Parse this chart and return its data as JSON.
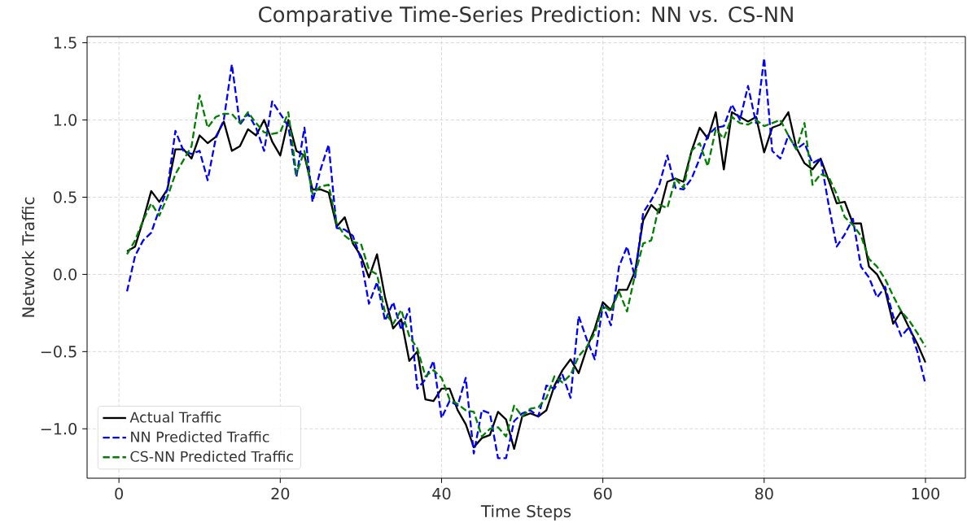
{
  "chart_data": {
    "type": "line",
    "title": "Comparative Time-Series Prediction: NN vs. CS-NN",
    "xlabel": "Time Steps",
    "ylabel": "Network Traffic",
    "x": [
      1,
      2,
      3,
      4,
      5,
      6,
      7,
      8,
      9,
      10,
      11,
      12,
      13,
      14,
      15,
      16,
      17,
      18,
      19,
      20,
      21,
      22,
      23,
      24,
      25,
      26,
      27,
      28,
      29,
      30,
      31,
      32,
      33,
      34,
      35,
      36,
      37,
      38,
      39,
      40,
      41,
      42,
      43,
      44,
      45,
      46,
      47,
      48,
      49,
      50,
      51,
      52,
      53,
      54,
      55,
      56,
      57,
      58,
      59,
      60,
      61,
      62,
      63,
      64,
      65,
      66,
      67,
      68,
      69,
      70,
      71,
      72,
      73,
      74,
      75,
      76,
      77,
      78,
      79,
      80,
      81,
      82,
      83,
      84,
      85,
      86,
      87,
      88,
      89,
      90,
      91,
      92,
      93,
      94,
      95,
      96,
      97,
      98,
      99,
      100
    ],
    "series": [
      {
        "name": "Actual Traffic",
        "color": "#000000",
        "line_style": "solid",
        "values": [
          0.15,
          0.18,
          0.35,
          0.54,
          0.47,
          0.55,
          0.81,
          0.81,
          0.75,
          0.9,
          0.85,
          0.89,
          0.99,
          0.8,
          0.83,
          0.94,
          0.9,
          1.0,
          0.86,
          0.77,
          1.0,
          0.8,
          0.77,
          0.55,
          0.55,
          0.53,
          0.31,
          0.37,
          0.2,
          0.12,
          -0.02,
          0.13,
          -0.15,
          -0.35,
          -0.29,
          -0.56,
          -0.5,
          -0.81,
          -0.82,
          -0.74,
          -0.74,
          -0.88,
          -0.97,
          -1.12,
          -1.06,
          -1.04,
          -0.89,
          -0.94,
          -1.13,
          -0.92,
          -0.9,
          -0.92,
          -0.88,
          -0.72,
          -0.62,
          -0.55,
          -0.64,
          -0.48,
          -0.35,
          -0.18,
          -0.23,
          -0.1,
          -0.1,
          0.02,
          0.35,
          0.45,
          0.4,
          0.6,
          0.62,
          0.6,
          0.8,
          0.95,
          0.88,
          1.05,
          0.68,
          1.05,
          1.02,
          0.99,
          1.02,
          0.79,
          0.95,
          0.97,
          1.05,
          0.82,
          0.72,
          0.68,
          0.75,
          0.61,
          0.46,
          0.47,
          0.33,
          0.33,
          0.05,
          0.0,
          -0.1,
          -0.32,
          -0.24,
          -0.35,
          -0.45,
          -0.57
        ]
      },
      {
        "name": "NN Predicted Traffic",
        "color": "#0000ff",
        "line_style": "dashed",
        "values": [
          -0.11,
          0.12,
          0.22,
          0.27,
          0.42,
          0.55,
          0.93,
          0.8,
          0.78,
          0.8,
          0.61,
          0.88,
          1.0,
          1.36,
          0.97,
          1.04,
          0.95,
          0.8,
          1.12,
          1.04,
          0.96,
          0.63,
          0.95,
          0.47,
          0.68,
          0.84,
          0.3,
          0.29,
          0.25,
          0.1,
          -0.19,
          -0.05,
          -0.3,
          -0.18,
          -0.36,
          -0.22,
          -0.74,
          -0.68,
          -0.56,
          -0.93,
          -0.82,
          -0.85,
          -0.67,
          -1.16,
          -0.88,
          -0.9,
          -1.19,
          -1.19,
          -0.95,
          -0.9,
          -0.88,
          -0.92,
          -0.72,
          -0.74,
          -0.65,
          -0.8,
          -0.27,
          -0.42,
          -0.55,
          -0.2,
          -0.33,
          0.05,
          0.18,
          -0.02,
          0.4,
          0.48,
          0.58,
          0.77,
          0.56,
          0.55,
          0.62,
          0.75,
          0.9,
          0.95,
          0.96,
          1.1,
          1.0,
          1.22,
          0.98,
          1.4,
          0.8,
          0.75,
          0.9,
          0.81,
          0.85,
          0.72,
          0.75,
          0.45,
          0.18,
          0.26,
          0.36,
          0.05,
          -0.02,
          -0.15,
          -0.08,
          -0.27,
          -0.4,
          -0.34,
          -0.5,
          -0.71
        ]
      },
      {
        "name": "CS-NN Predicted Traffic",
        "color": "#008000",
        "line_style": "dashed",
        "values": [
          0.13,
          0.22,
          0.35,
          0.46,
          0.38,
          0.5,
          0.65,
          0.74,
          0.83,
          1.16,
          0.95,
          1.02,
          1.04,
          1.04,
          0.98,
          1.05,
          0.98,
          0.92,
          0.91,
          0.92,
          1.05,
          0.65,
          0.8,
          0.52,
          0.57,
          0.58,
          0.33,
          0.25,
          0.21,
          0.2,
          0.03,
          0.0,
          -0.25,
          -0.32,
          -0.23,
          -0.4,
          -0.48,
          -0.66,
          -0.62,
          -0.67,
          -0.81,
          -0.84,
          -0.88,
          -0.89,
          -1.05,
          -1.0,
          -0.99,
          -1.05,
          -0.85,
          -0.92,
          -0.87,
          -0.86,
          -0.8,
          -0.66,
          -0.7,
          -0.65,
          -0.53,
          -0.47,
          -0.38,
          -0.2,
          -0.24,
          -0.11,
          -0.24,
          0.0,
          0.2,
          0.22,
          0.45,
          0.43,
          0.62,
          0.56,
          0.8,
          0.85,
          0.7,
          0.94,
          0.88,
          1.02,
          0.98,
          0.97,
          1.0,
          0.96,
          0.98,
          1.0,
          0.9,
          0.81,
          0.98,
          0.58,
          0.65,
          0.63,
          0.52,
          0.37,
          0.32,
          0.25,
          0.1,
          0.05,
          -0.03,
          -0.14,
          -0.24,
          -0.3,
          -0.38,
          -0.47
        ]
      }
    ],
    "xlim": [
      -3.95,
      104.95
    ],
    "ylim": [
      -1.32,
      1.54
    ],
    "xticks": [
      0,
      20,
      40,
      60,
      80,
      100
    ],
    "yticks": [
      {
        "value": -1.0,
        "label": "−1.0"
      },
      {
        "value": -0.5,
        "label": "−0.5"
      },
      {
        "value": 0.0,
        "label": "0.0"
      },
      {
        "value": 0.5,
        "label": "0.5"
      },
      {
        "value": 1.0,
        "label": "1.0"
      },
      {
        "value": 1.5,
        "label": "1.5"
      }
    ],
    "grid": true,
    "legend": "bottom left"
  }
}
